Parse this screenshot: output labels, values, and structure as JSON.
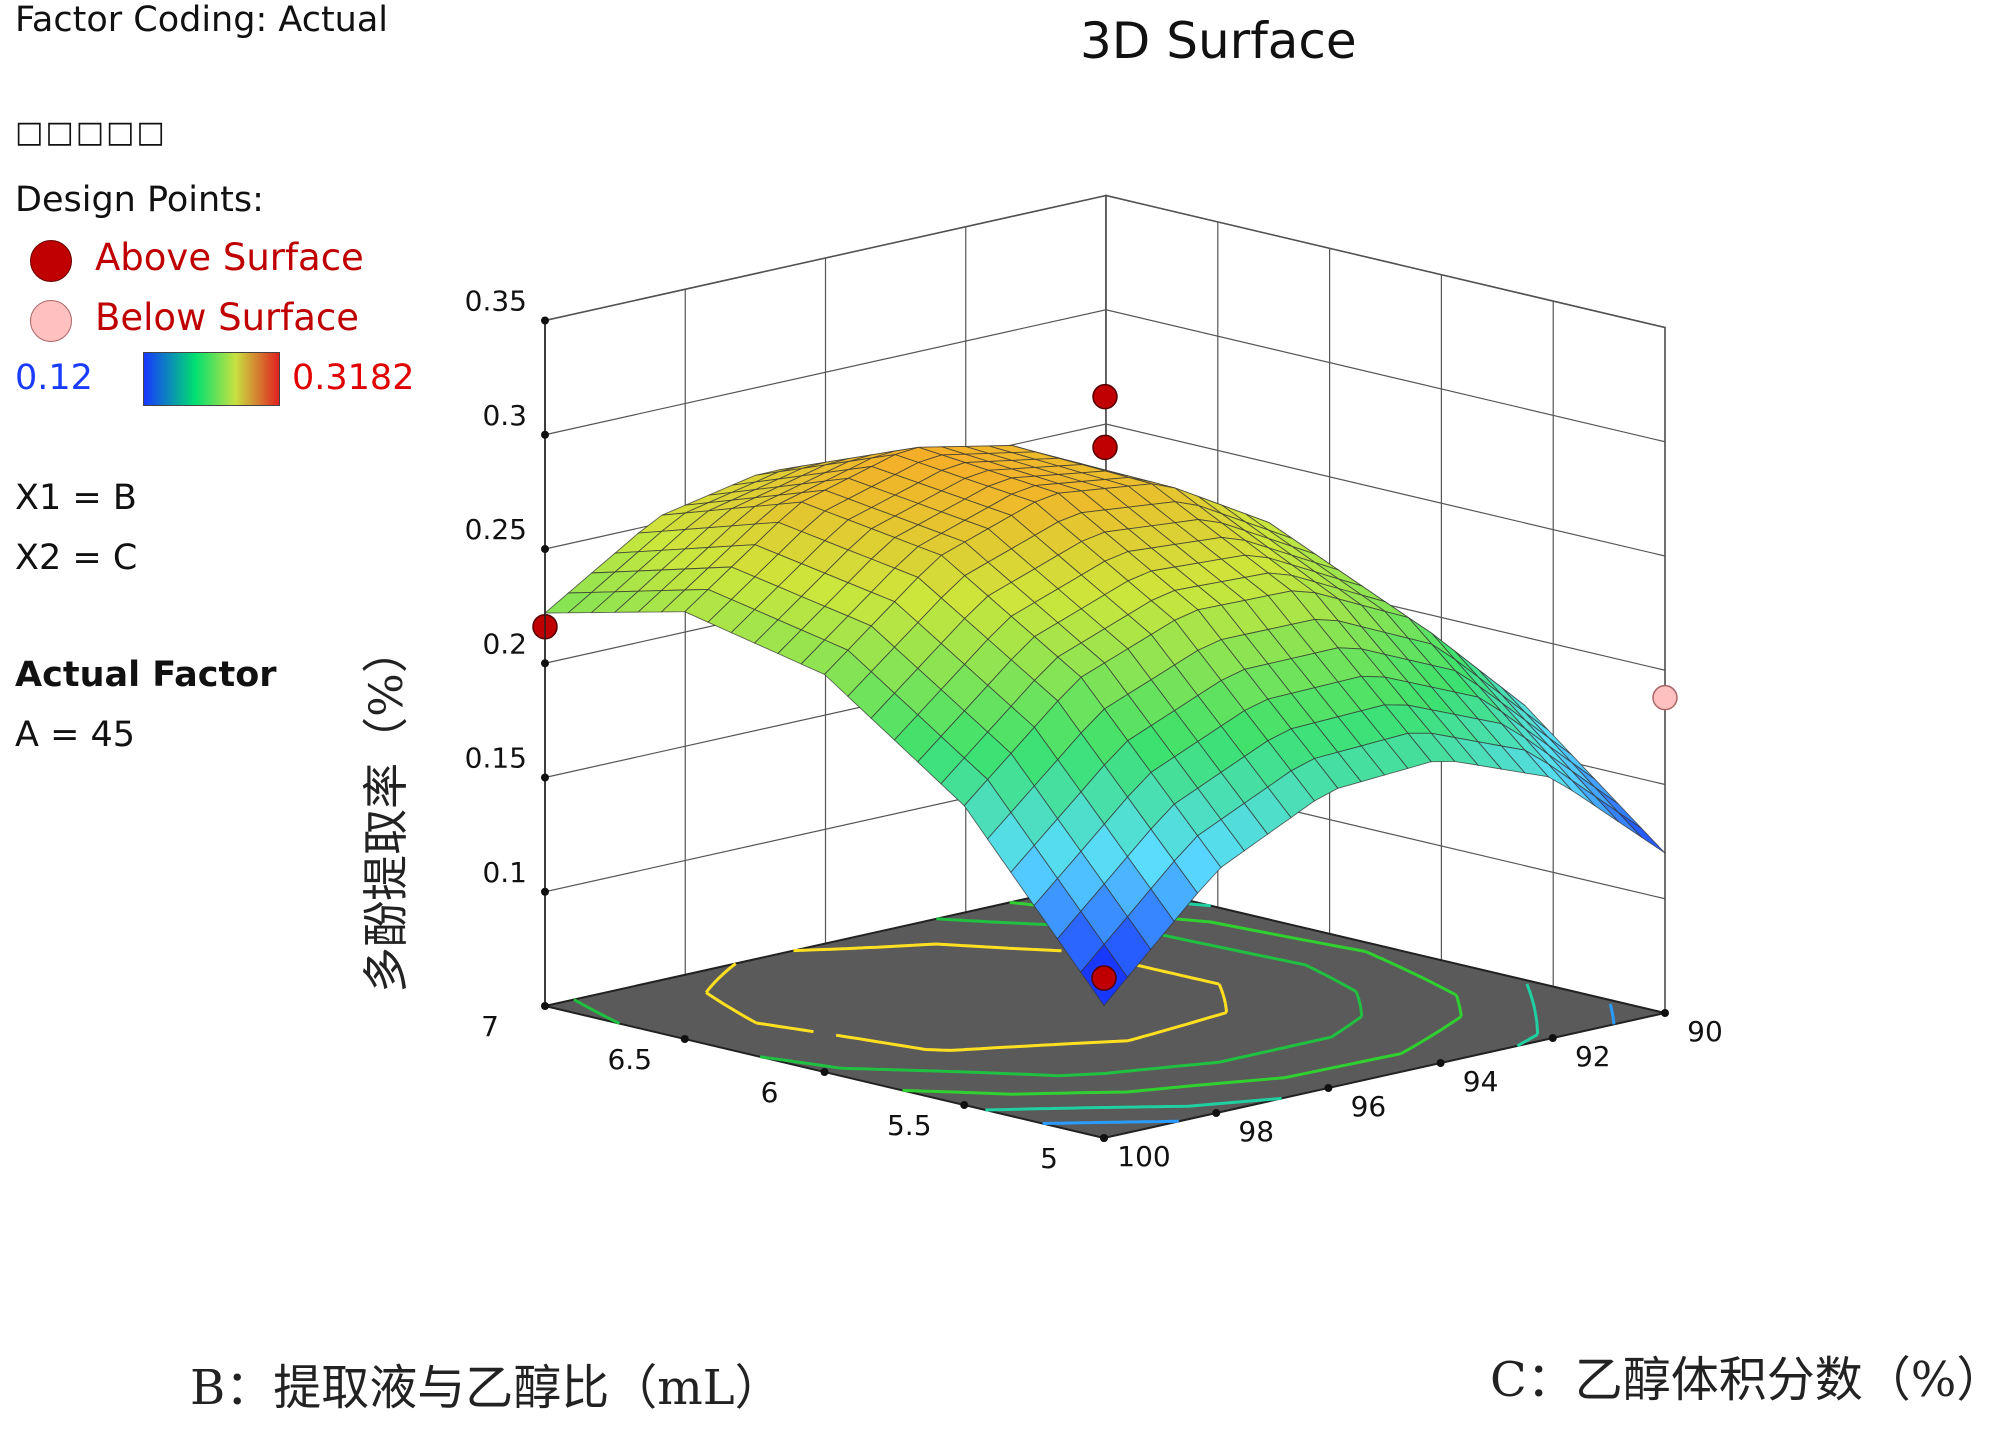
{
  "header": {
    "factor_coding": "Factor Coding: Actual",
    "title": "3D Surface",
    "response_name": "□□□□□"
  },
  "legend": {
    "heading": "Design Points:",
    "above_label": "Above Surface",
    "below_label": "Below Surface",
    "above_color": "#c00000",
    "below_color": "#ffc0c0",
    "colorbar_min": "0.12",
    "colorbar_max": "0.3182",
    "colorbar_colors": [
      "#1838ff",
      "#00e060",
      "#c8e040",
      "#e02020"
    ]
  },
  "factors": {
    "x1": "X1 = B",
    "x2": "X2 = C",
    "actual_factor_heading": "Actual Factor",
    "actual_factor_value": "A = 45"
  },
  "chart_data": {
    "type": "surface3d",
    "title": "3D Surface",
    "zlabel": "多酚提取率（%）",
    "xlabel": "B：提取液与乙醇比（mL）",
    "ylabel": "C：乙醇体积分数（%）",
    "x_ticks": [
      "5",
      "5.5",
      "6",
      "6.5",
      "7"
    ],
    "y_ticks": [
      "90",
      "92",
      "94",
      "96",
      "98",
      "100"
    ],
    "z_ticks": [
      "0.1",
      "0.15",
      "0.2",
      "0.25",
      "0.3",
      "0.35"
    ],
    "xlim": [
      5,
      7
    ],
    "ylim": [
      90,
      100
    ],
    "zlim": [
      0.05,
      0.35
    ],
    "surface_z": [
      [
        0.12,
        0.164,
        0.183,
        0.18,
        0.156,
        0.108
      ],
      [
        0.17,
        0.219,
        0.243,
        0.244,
        0.225,
        0.181
      ],
      [
        0.19,
        0.246,
        0.275,
        0.281,
        0.264,
        0.224
      ],
      [
        0.18,
        0.243,
        0.277,
        0.287,
        0.273,
        0.237
      ],
      [
        0.14,
        0.21,
        0.249,
        0.263,
        0.253,
        0.222
      ]
    ],
    "design_points": [
      {
        "x": 6,
        "y": 95,
        "z": 0.3182,
        "position": "above"
      },
      {
        "x": 6,
        "y": 95,
        "z": 0.296,
        "position": "above"
      },
      {
        "x": 7,
        "y": 100,
        "z": 0.216,
        "position": "above"
      },
      {
        "x": 5,
        "y": 90,
        "z": 0.188,
        "position": "below"
      },
      {
        "x": 5,
        "y": 100,
        "z": 0.12,
        "position": "above"
      }
    ],
    "contour_levels": [
      0.14,
      0.17,
      0.2,
      0.23,
      0.26
    ],
    "grid": true
  }
}
